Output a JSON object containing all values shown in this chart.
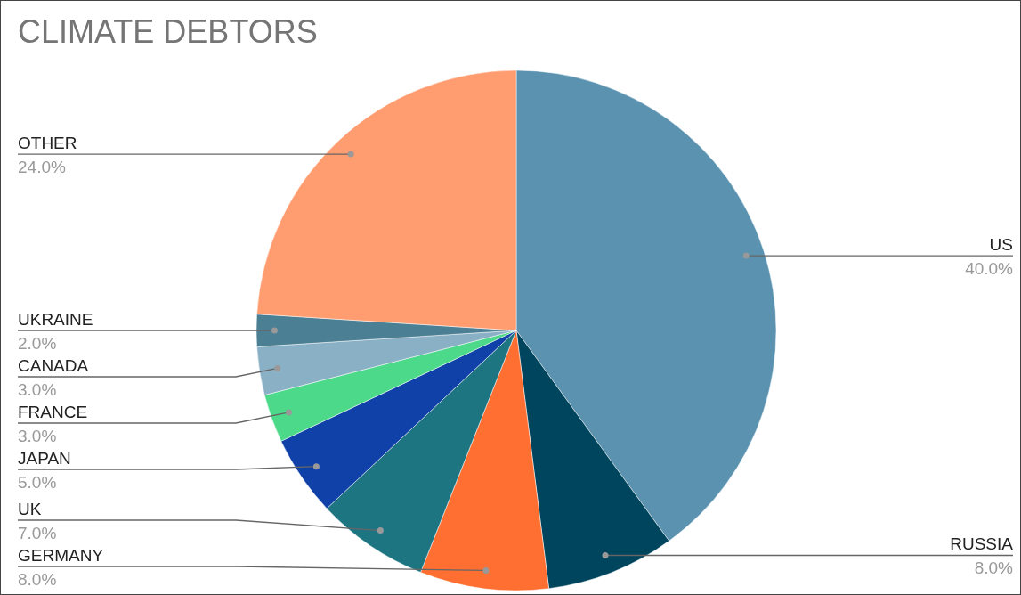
{
  "chart_data": {
    "type": "pie",
    "title": "CLIMATE DEBTORS",
    "categories": [
      "US",
      "RUSSIA",
      "GERMANY",
      "UK",
      "JAPAN",
      "FRANCE",
      "CANADA",
      "UKRAINE",
      "OTHER"
    ],
    "values": [
      40,
      8,
      8,
      7,
      5,
      3,
      3,
      2,
      24
    ],
    "colors": [
      "#5a92b0",
      "#00455e",
      "#ff6f31",
      "#1e7582",
      "#1041a8",
      "#4cd98a",
      "#8ab0c6",
      "#4a7f94",
      "#ff9d70"
    ],
    "value_labels": [
      "40.0%",
      "8.0%",
      "8.0%",
      "7.0%",
      "5.0%",
      "3.0%",
      "3.0%",
      "2.0%",
      "24.0%"
    ]
  }
}
